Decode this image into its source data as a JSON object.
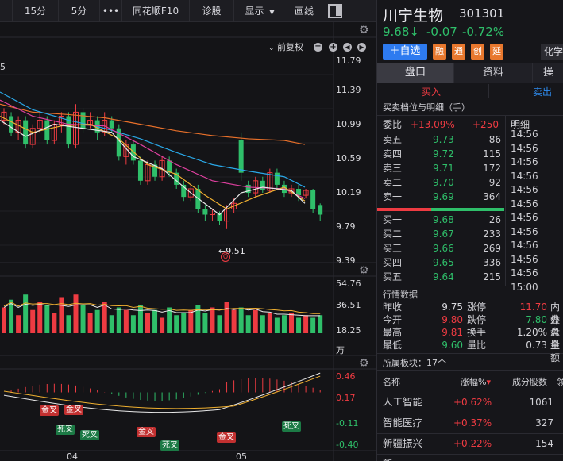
{
  "toolbar": {
    "items": [
      "15分",
      "5分",
      "•••",
      "同花顺F10",
      "诊股",
      "显示",
      "画线"
    ],
    "show_arrow": "▼"
  },
  "kline": {
    "price_ticks": [
      "11.79",
      "11.39",
      "10.99",
      "10.59",
      "10.19",
      "9.79",
      "9.39"
    ],
    "left_edge_label": "5",
    "adjust_label": "前复权",
    "low_marker": "←9.51",
    "low_flag": "Q"
  },
  "volume": {
    "ticks": [
      "54.76",
      "36.51",
      "18.25",
      "万"
    ]
  },
  "macd": {
    "ticks": [
      "0.46",
      "0.17",
      "-0.11",
      "-0.40"
    ],
    "markers": [
      {
        "label": "金叉",
        "type": "gold"
      },
      {
        "label": "金叉",
        "type": "gold"
      },
      {
        "label": "死叉",
        "type": "dead"
      },
      {
        "label": "死叉",
        "type": "dead"
      },
      {
        "label": "金叉",
        "type": "gold"
      },
      {
        "label": "死叉",
        "type": "dead"
      },
      {
        "label": "金叉",
        "type": "gold"
      },
      {
        "label": "死叉",
        "type": "dead"
      }
    ],
    "months": [
      "04",
      "05"
    ]
  },
  "stock": {
    "name": "川宁生物",
    "code": "301301",
    "price": "9.68",
    "arrow": "↓",
    "change": "-0.07",
    "change_pct": "-0.72%",
    "add_watch": "＋自选",
    "tags": [
      "融",
      "通",
      "创",
      "延"
    ],
    "sector_cut": "化学"
  },
  "panel_tabs": [
    "盘口",
    "资料",
    "操"
  ],
  "buy_label": "买入",
  "sell_label": "卖出",
  "order_book": {
    "title": "买卖档位与明细（手）",
    "weibi_label": "委比",
    "weibi_value": "+13.09%",
    "weibi_diff": "+250",
    "detail_label": "明细",
    "asks": [
      {
        "label": "卖五",
        "price": "9.73",
        "vol": "86"
      },
      {
        "label": "卖四",
        "price": "9.72",
        "vol": "115"
      },
      {
        "label": "卖三",
        "price": "9.71",
        "vol": "172"
      },
      {
        "label": "卖二",
        "price": "9.70",
        "vol": "92"
      },
      {
        "label": "卖一",
        "price": "9.69",
        "vol": "364"
      }
    ],
    "bids": [
      {
        "label": "买一",
        "price": "9.68",
        "vol": "26"
      },
      {
        "label": "买二",
        "price": "9.67",
        "vol": "233"
      },
      {
        "label": "买三",
        "price": "9.66",
        "vol": "269"
      },
      {
        "label": "买四",
        "price": "9.65",
        "vol": "336"
      },
      {
        "label": "买五",
        "price": "9.64",
        "vol": "215"
      }
    ],
    "detail_times": [
      "14:56",
      "14:56",
      "14:56",
      "14:56",
      "14:56",
      "14:56",
      "14:56",
      "14:56",
      "14:56",
      "14:56",
      "14:56",
      "15:00"
    ]
  },
  "quote": {
    "title": "行情数据",
    "rows": [
      {
        "k1": "昨收",
        "v1": "9.75",
        "k2": "涨停",
        "v2": "11.70",
        "k3": "内盘"
      },
      {
        "k1": "今开",
        "v1": "9.80",
        "k2": "跌停",
        "v2": "7.80",
        "k3": "外盘"
      },
      {
        "k1": "最高",
        "v1": "9.81",
        "k2": "换手",
        "v2": "1.20%",
        "k3": "总量"
      },
      {
        "k1": "最低",
        "v1": "9.60",
        "k2": "量比",
        "v2": "0.73",
        "k3": "金额"
      }
    ]
  },
  "sectors": {
    "title": "所属板块：17个",
    "headers": [
      "名称",
      "涨幅%",
      "成分股数",
      "领"
    ],
    "sort_arrow": "▾",
    "rows": [
      {
        "name": "人工智能",
        "pct": "+0.62%",
        "count": "1061"
      },
      {
        "name": "智能医疗",
        "pct": "+0.37%",
        "count": "327"
      },
      {
        "name": "新疆振兴",
        "pct": "+0.22%",
        "count": "154"
      },
      {
        "name": "新",
        "pct": "",
        "count": ""
      }
    ]
  },
  "colors": {
    "up": "#ee3b42",
    "down": "#2fbf6a",
    "ma5": "#e8e8e8",
    "ma10": "#f0b030",
    "ma20": "#e040a0",
    "ma30": "#2aa8e8",
    "ma60": "#e8702a",
    "accent_blue": "#2e7bf0",
    "tag_orange": "#e8782e"
  }
}
